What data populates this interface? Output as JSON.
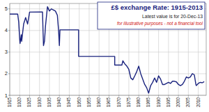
{
  "chart_data": {
    "type": "line",
    "title": "£$ exchange Rate: 1915-2013",
    "subtitle": "Latest value is for 20-Dec-13",
    "annotations": [
      "for illustrative purposes - not a financial tool"
    ],
    "x": [
      1915,
      1919,
      1919.5,
      1920,
      1920.2,
      1920.8,
      1921,
      1921.5,
      1922,
      1923,
      1924,
      1925,
      1931.5,
      1931.8,
      1932,
      1932.5,
      1933,
      1934,
      1935,
      1936,
      1937,
      1938,
      1939,
      1939.6,
      1940,
      1940.3,
      1949.7,
      1949.7,
      1967.9,
      1967.9,
      1971.5,
      1972,
      1973,
      1974,
      1975,
      1976,
      1977,
      1978,
      1979,
      1980,
      1981,
      1982,
      1983,
      1984,
      1985,
      1986,
      1987,
      1988,
      1989,
      1990,
      1991,
      1992,
      1993,
      1994,
      1995,
      1996,
      1997,
      1998,
      1999,
      2000,
      2001,
      2002,
      2003,
      2004,
      2005,
      2006,
      2007,
      2008,
      2008.8,
      2009,
      2010,
      2011,
      2012,
      2013
    ],
    "values": [
      4.76,
      4.76,
      4.4,
      3.6,
      3.4,
      3.8,
      3.5,
      3.9,
      4.3,
      4.6,
      4.3,
      4.85,
      4.86,
      3.9,
      3.3,
      3.5,
      4.2,
      5.1,
      4.9,
      5.0,
      4.95,
      4.9,
      4.7,
      4.0,
      3.3,
      4.03,
      4.03,
      2.8,
      2.8,
      2.4,
      2.4,
      2.6,
      2.45,
      2.35,
      2.2,
      1.8,
      1.72,
      1.9,
      2.1,
      2.35,
      2.0,
      1.75,
      1.5,
      1.35,
      1.1,
      1.45,
      1.6,
      1.8,
      1.6,
      1.9,
      1.75,
      1.5,
      1.5,
      1.55,
      1.6,
      1.55,
      1.65,
      1.65,
      1.62,
      1.5,
      1.45,
      1.5,
      1.65,
      1.85,
      1.8,
      1.85,
      2.0,
      1.95,
      1.5,
      1.45,
      1.55,
      1.6,
      1.58,
      1.63
    ],
    "color": "#1a237e",
    "xlim": [
      1915,
      2014
    ],
    "ylim": [
      1,
      5.25
    ],
    "xticks": [
      1915,
      1920,
      1925,
      1930,
      1935,
      1940,
      1945,
      1950,
      1955,
      1960,
      1965,
      1970,
      1975,
      1980,
      1985,
      1990,
      1995,
      2000,
      2005,
      2010
    ],
    "yticks": [
      1,
      2,
      3,
      4,
      5
    ],
    "grid": true
  }
}
